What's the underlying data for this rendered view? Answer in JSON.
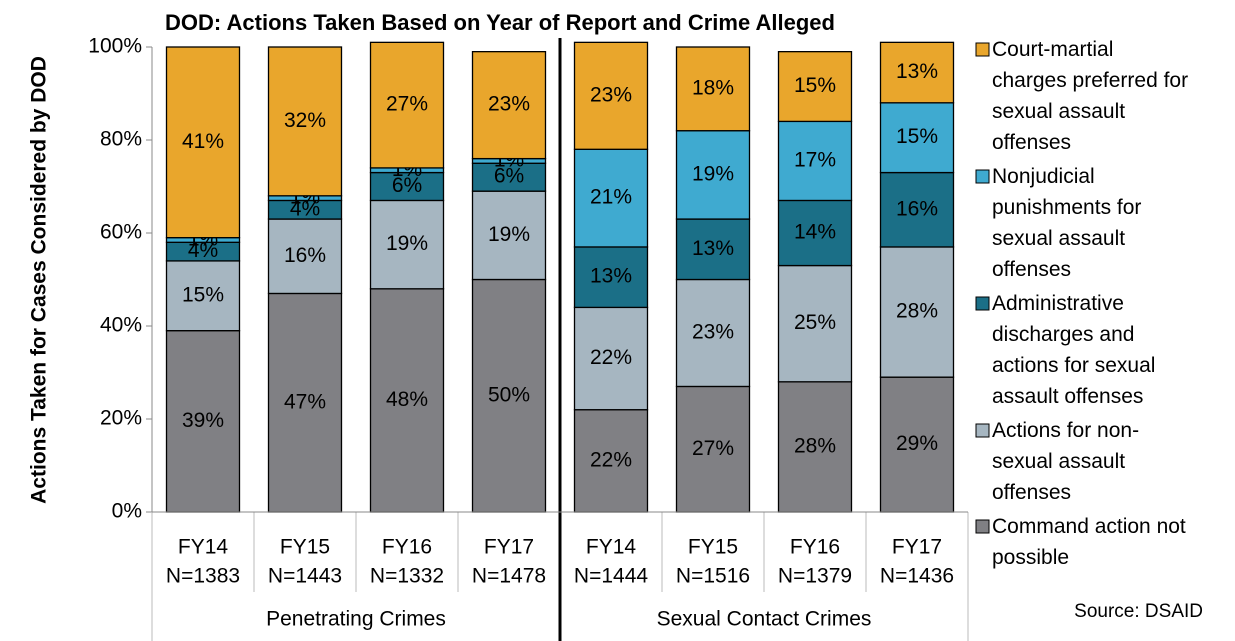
{
  "chart_data": {
    "type": "stacked_bar",
    "title": "DOD: Actions Taken Based on Year of Report and Crime Alleged",
    "y_label": "Actions Taken for Cases Considered by DOD",
    "source": "Source: DSAID",
    "groups": [
      "Penetrating Crimes",
      "Sexual Contact Crimes"
    ],
    "categories": [
      "FY14",
      "FY15",
      "FY16",
      "FY17",
      "FY14",
      "FY15",
      "FY16",
      "FY17"
    ],
    "sizes": [
      "N=1383",
      "N=1443",
      "N=1332",
      "N=1478",
      "N=1444",
      "N=1516",
      "N=1379",
      "N=1436"
    ],
    "ylim": [
      0,
      100
    ],
    "yticks": [
      {
        "value": 0,
        "label": "0%"
      },
      {
        "value": 20,
        "label": "20%"
      },
      {
        "value": 40,
        "label": "40%"
      },
      {
        "value": 60,
        "label": "60%"
      },
      {
        "value": 80,
        "label": "80%"
      },
      {
        "value": 100,
        "label": "100%"
      }
    ],
    "series": [
      {
        "name": "Command action not possible",
        "color": "#808084",
        "text_color": "#ffffff",
        "values": [
          39,
          47,
          48,
          50,
          22,
          27,
          28,
          29
        ],
        "value_labels": [
          "39%",
          "47%",
          "48%",
          "50%",
          "22%",
          "27%",
          "28%",
          "29%"
        ]
      },
      {
        "name": "Actions for non-sexual assault offenses",
        "color": "#a6b6c1",
        "text_color": "#000000",
        "values": [
          15,
          16,
          19,
          19,
          22,
          23,
          25,
          28
        ],
        "value_labels": [
          "15%",
          "16%",
          "19%",
          "19%",
          "22%",
          "23%",
          "25%",
          "28%"
        ]
      },
      {
        "name": "Administrative discharges and actions for sexual assault offenses",
        "color": "#1b6f87",
        "text_color": "#ffffff",
        "values": [
          4,
          4,
          6,
          6,
          13,
          13,
          14,
          16
        ],
        "value_labels": [
          "4%",
          "4%",
          "6%",
          "6%",
          "13%",
          "13%",
          "14%",
          "16%"
        ]
      },
      {
        "name": "Nonjudicial punishments for sexual assault offenses",
        "color": "#3faad0",
        "text_color": "#000000",
        "values": [
          1,
          1,
          1,
          1,
          21,
          19,
          17,
          15
        ],
        "value_labels": [
          "1%",
          "1%",
          "1%",
          "1%",
          "21%",
          "19%",
          "17%",
          "15%"
        ]
      },
      {
        "name": "Court-martial charges preferred for sexual assault offenses",
        "color": "#e9a62c",
        "text_color": "#000000",
        "values": [
          41,
          32,
          27,
          23,
          23,
          18,
          15,
          13
        ],
        "value_labels": [
          "41%",
          "32%",
          "27%",
          "23%",
          "23%",
          "18%",
          "15%",
          "13%"
        ]
      }
    ]
  }
}
